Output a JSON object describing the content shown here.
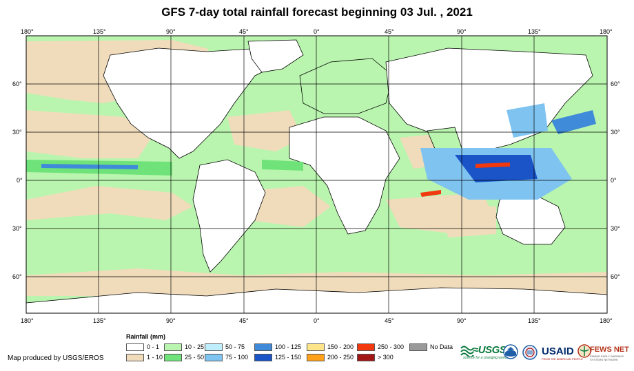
{
  "title": "GFS 7-day total rainfall forecast beginning 03 Jul. , 2021",
  "longitude_labels": [
    "180°",
    "135°",
    "90°",
    "45°",
    "0°",
    "45°",
    "90°",
    "135°",
    "180°"
  ],
  "latitude_labels": [
    "60°",
    "30°",
    "0°",
    "30°",
    "60°"
  ],
  "legend": {
    "title": "Rainfall (mm)",
    "items": [
      {
        "label": "0 - 1",
        "color": "#ffffff"
      },
      {
        "label": "1 - 10",
        "color": "#f0dcbb"
      },
      {
        "label": "10 - 25",
        "color": "#b9f5ae"
      },
      {
        "label": "25 - 50",
        "color": "#6fe37a"
      },
      {
        "label": "50 - 75",
        "color": "#bfeefc"
      },
      {
        "label": "75 - 100",
        "color": "#7fc3f0"
      },
      {
        "label": "100 - 125",
        "color": "#3f8bd9"
      },
      {
        "label": "125 - 150",
        "color": "#1a54c7"
      },
      {
        "label": "150 - 200",
        "color": "#ffe58a"
      },
      {
        "label": "200 - 250",
        "color": "#ff9f1a"
      },
      {
        "label": "250 - 300",
        "color": "#f2380f"
      },
      {
        "label": "> 300",
        "color": "#a31616"
      },
      {
        "label": "No Data",
        "color": "#9a9a9a"
      }
    ]
  },
  "credit": "Map produced by USGS/EROS",
  "logos": {
    "usgs": {
      "name": "usgs-logo",
      "text": "≈USGS",
      "tagline": "science for a changing world",
      "color": "#0b7a3e"
    },
    "noaa": {
      "name": "noaa-logo",
      "color": "#1f5fa8"
    },
    "nws": {
      "name": "nws-logo",
      "color": "#1f5fa8"
    },
    "usaid": {
      "name": "usaid-logo",
      "text": "USAID",
      "tagline": "FROM THE AMERICAN PEOPLE",
      "color": "#002a6c"
    },
    "fews": {
      "name": "fews-net-logo",
      "text": "FEWS NET",
      "tagline": "FAMINE EARLY WARNING SYSTEMS NETWORK",
      "color": "#b5361c"
    }
  }
}
